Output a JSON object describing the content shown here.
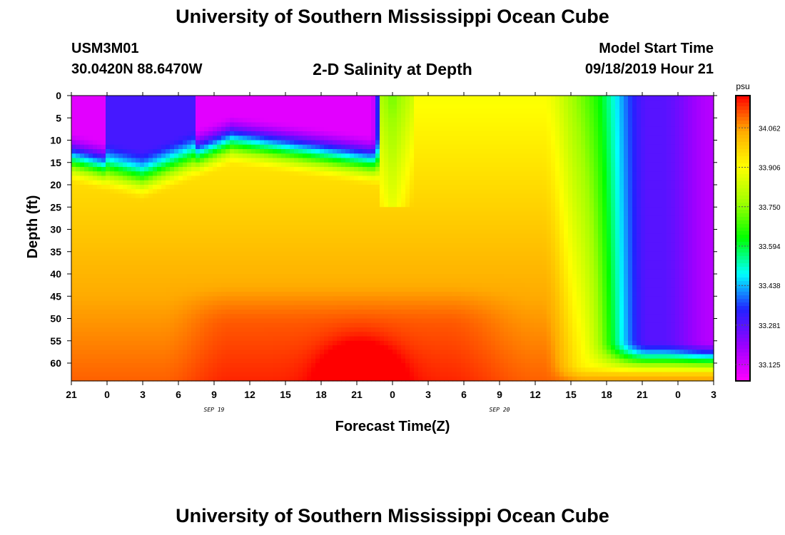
{
  "header": {
    "title_top": "University of Southern Mississippi Ocean Cube",
    "title_bottom": "University of Southern Mississippi Ocean Cube",
    "station_id": "USM3M01",
    "station_coords": "30.0420N 88.6470W",
    "plot_title": "2-D Salinity at Depth",
    "model_label": "Model Start Time",
    "model_time": "09/18/2019 Hour 21"
  },
  "chart_data": {
    "type": "heatmap",
    "title": "2-D Salinity at Depth",
    "xlabel": "Forecast Time(Z)",
    "ylabel": "Depth (ft)",
    "x_hours_ticks": [
      "21",
      "0",
      "3",
      "6",
      "9",
      "12",
      "15",
      "18",
      "21",
      "0",
      "3",
      "6",
      "9",
      "12",
      "15",
      "18",
      "21",
      "0",
      "3"
    ],
    "x_date_labels": [
      {
        "label": "SEP 19",
        "at_tick": 4
      },
      {
        "label": "SEP 20",
        "at_tick": 12
      }
    ],
    "y_ticks": [
      0,
      5,
      10,
      15,
      20,
      25,
      30,
      35,
      40,
      45,
      50,
      55,
      60
    ],
    "ylim": [
      0,
      64
    ],
    "y_inverted": true,
    "colorbar": {
      "unit": "psu",
      "labels": [
        "34.062",
        "33.906",
        "33.750",
        "33.594",
        "33.438",
        "33.281",
        "33.125"
      ],
      "range": [
        33.06,
        34.19
      ]
    },
    "colors": {
      "palette": [
        "#ff00ff",
        "#9900ff",
        "#2222ff",
        "#00ffff",
        "#00ff00",
        "#a0ff00",
        "#ffff00",
        "#ffaa00",
        "#ff0000"
      ]
    }
  }
}
